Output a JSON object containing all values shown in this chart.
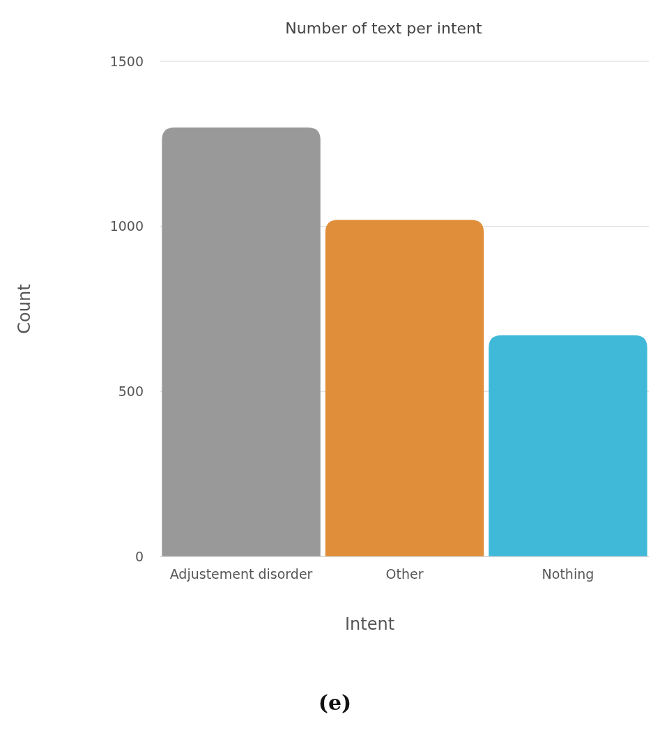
{
  "chart_data": {
    "type": "bar",
    "title": "Number of text per intent",
    "xlabel": "Intent",
    "ylabel": "Count",
    "categories": [
      "Adjustement disorder",
      "Other",
      "Nothing"
    ],
    "values": [
      1300,
      1020,
      670
    ],
    "colors": [
      "#999999",
      "#e08e3a",
      "#40b8d8"
    ],
    "ylim": [
      0,
      1500
    ],
    "yticks": [
      0,
      500,
      1000,
      1500
    ],
    "grid": "y",
    "annotations": [
      "(e)"
    ]
  }
}
